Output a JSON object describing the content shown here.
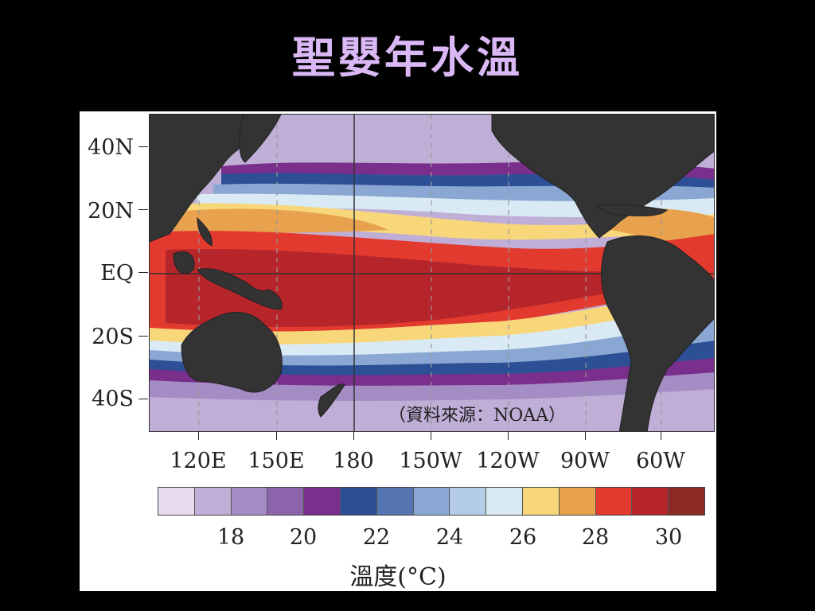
{
  "slide": {
    "title": "聖嬰年水溫"
  },
  "map": {
    "latitude_labels": [
      "40N",
      "20N",
      "EQ",
      "20S",
      "40S"
    ],
    "longitude_labels": [
      "120E",
      "150E",
      "180",
      "150W",
      "120W",
      "90W",
      "60W"
    ],
    "source_note": "（資料來源：NOAA）",
    "land_color": "#333333"
  },
  "colorbar": {
    "title": "溫度(°C)",
    "tick_labels": [
      "18",
      "20",
      "22",
      "24",
      "26",
      "28",
      "30"
    ],
    "colors": [
      "#e6dcee",
      "#bfaed6",
      "#a48cc4",
      "#8e65ac",
      "#7a2f8c",
      "#2d4f95",
      "#5474b2",
      "#8aa7d3",
      "#b4cce5",
      "#d9eaf4",
      "#f8d77a",
      "#e8a24d",
      "#e33a2f",
      "#b5252a",
      "#8b2a25"
    ]
  }
}
